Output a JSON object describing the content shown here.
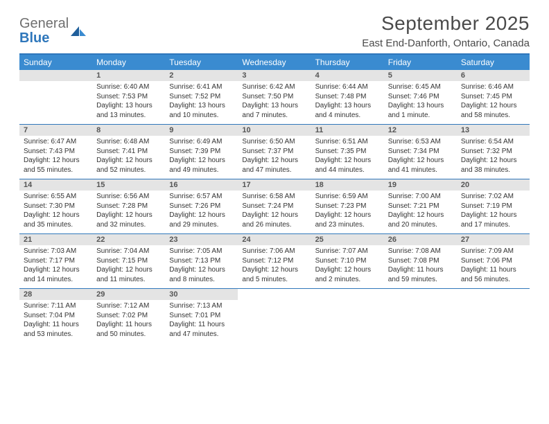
{
  "brand": {
    "general": "General",
    "blue": "Blue"
  },
  "colors": {
    "accent": "#2f77bb",
    "header_bg": "#3a8bd0",
    "daynum_bg": "#e4e4e4",
    "text": "#333333",
    "logo_gray": "#6f6f6f"
  },
  "title": "September 2025",
  "location": "East End-Danforth, Ontario, Canada",
  "weekdays": [
    "Sunday",
    "Monday",
    "Tuesday",
    "Wednesday",
    "Thursday",
    "Friday",
    "Saturday"
  ],
  "layout": {
    "first_weekday_index": 1,
    "days_in_month": 30,
    "rows": 5,
    "cols": 7
  },
  "font": {
    "daybody_size_pt": 7.5,
    "daynum_size_pt": 8,
    "header_size_pt": 9,
    "title_size_pt": 21
  },
  "days": {
    "1": {
      "sunrise": "6:40 AM",
      "sunset": "7:53 PM",
      "daylight": "13 hours and 13 minutes."
    },
    "2": {
      "sunrise": "6:41 AM",
      "sunset": "7:52 PM",
      "daylight": "13 hours and 10 minutes."
    },
    "3": {
      "sunrise": "6:42 AM",
      "sunset": "7:50 PM",
      "daylight": "13 hours and 7 minutes."
    },
    "4": {
      "sunrise": "6:44 AM",
      "sunset": "7:48 PM",
      "daylight": "13 hours and 4 minutes."
    },
    "5": {
      "sunrise": "6:45 AM",
      "sunset": "7:46 PM",
      "daylight": "13 hours and 1 minute."
    },
    "6": {
      "sunrise": "6:46 AM",
      "sunset": "7:45 PM",
      "daylight": "12 hours and 58 minutes."
    },
    "7": {
      "sunrise": "6:47 AM",
      "sunset": "7:43 PM",
      "daylight": "12 hours and 55 minutes."
    },
    "8": {
      "sunrise": "6:48 AM",
      "sunset": "7:41 PM",
      "daylight": "12 hours and 52 minutes."
    },
    "9": {
      "sunrise": "6:49 AM",
      "sunset": "7:39 PM",
      "daylight": "12 hours and 49 minutes."
    },
    "10": {
      "sunrise": "6:50 AM",
      "sunset": "7:37 PM",
      "daylight": "12 hours and 47 minutes."
    },
    "11": {
      "sunrise": "6:51 AM",
      "sunset": "7:35 PM",
      "daylight": "12 hours and 44 minutes."
    },
    "12": {
      "sunrise": "6:53 AM",
      "sunset": "7:34 PM",
      "daylight": "12 hours and 41 minutes."
    },
    "13": {
      "sunrise": "6:54 AM",
      "sunset": "7:32 PM",
      "daylight": "12 hours and 38 minutes."
    },
    "14": {
      "sunrise": "6:55 AM",
      "sunset": "7:30 PM",
      "daylight": "12 hours and 35 minutes."
    },
    "15": {
      "sunrise": "6:56 AM",
      "sunset": "7:28 PM",
      "daylight": "12 hours and 32 minutes."
    },
    "16": {
      "sunrise": "6:57 AM",
      "sunset": "7:26 PM",
      "daylight": "12 hours and 29 minutes."
    },
    "17": {
      "sunrise": "6:58 AM",
      "sunset": "7:24 PM",
      "daylight": "12 hours and 26 minutes."
    },
    "18": {
      "sunrise": "6:59 AM",
      "sunset": "7:23 PM",
      "daylight": "12 hours and 23 minutes."
    },
    "19": {
      "sunrise": "7:00 AM",
      "sunset": "7:21 PM",
      "daylight": "12 hours and 20 minutes."
    },
    "20": {
      "sunrise": "7:02 AM",
      "sunset": "7:19 PM",
      "daylight": "12 hours and 17 minutes."
    },
    "21": {
      "sunrise": "7:03 AM",
      "sunset": "7:17 PM",
      "daylight": "12 hours and 14 minutes."
    },
    "22": {
      "sunrise": "7:04 AM",
      "sunset": "7:15 PM",
      "daylight": "12 hours and 11 minutes."
    },
    "23": {
      "sunrise": "7:05 AM",
      "sunset": "7:13 PM",
      "daylight": "12 hours and 8 minutes."
    },
    "24": {
      "sunrise": "7:06 AM",
      "sunset": "7:12 PM",
      "daylight": "12 hours and 5 minutes."
    },
    "25": {
      "sunrise": "7:07 AM",
      "sunset": "7:10 PM",
      "daylight": "12 hours and 2 minutes."
    },
    "26": {
      "sunrise": "7:08 AM",
      "sunset": "7:08 PM",
      "daylight": "11 hours and 59 minutes."
    },
    "27": {
      "sunrise": "7:09 AM",
      "sunset": "7:06 PM",
      "daylight": "11 hours and 56 minutes."
    },
    "28": {
      "sunrise": "7:11 AM",
      "sunset": "7:04 PM",
      "daylight": "11 hours and 53 minutes."
    },
    "29": {
      "sunrise": "7:12 AM",
      "sunset": "7:02 PM",
      "daylight": "11 hours and 50 minutes."
    },
    "30": {
      "sunrise": "7:13 AM",
      "sunset": "7:01 PM",
      "daylight": "11 hours and 47 minutes."
    }
  },
  "labels": {
    "sunrise": "Sunrise:",
    "sunset": "Sunset:",
    "daylight": "Daylight:"
  }
}
